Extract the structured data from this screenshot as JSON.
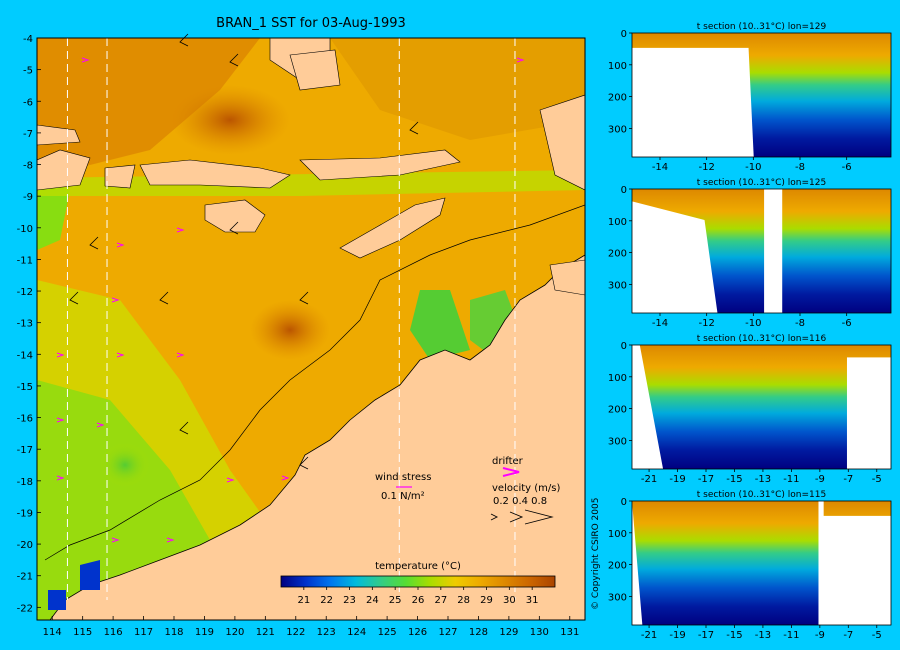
{
  "colors": {
    "background": "#00ccff",
    "land": "#ffcc99",
    "wind_vector": "#000000",
    "drifter": "#ff00ff",
    "section_empty": "#ffffff",
    "colorscale": [
      "#000080",
      "#0033cc",
      "#0077ee",
      "#00bbdd",
      "#33cc88",
      "#55dd33",
      "#aadd00",
      "#eecc00",
      "#eeaa00",
      "#dd8800",
      "#cc6600",
      "#aa4400"
    ]
  },
  "chart_data": [
    {
      "id": "map",
      "type": "heatmap",
      "title": "BRAN_1 SST for 03-Aug-1993",
      "x_ticks": [
        "114",
        "115",
        "116",
        "117",
        "118",
        "119",
        "120",
        "121",
        "122",
        "123",
        "124",
        "125",
        "126",
        "127",
        "128",
        "129",
        "130",
        "131"
      ],
      "y_ticks": [
        "-4",
        "-5",
        "-6",
        "-7",
        "-8",
        "-9",
        "-10",
        "-11",
        "-12",
        "-13",
        "-14",
        "-15",
        "-16",
        "-17",
        "-18",
        "-19",
        "-20",
        "-21",
        "-22"
      ],
      "xlim": [
        113.5,
        131.5
      ],
      "ylim": [
        -22.4,
        -4.0
      ],
      "section_lines_lon": [
        114.5,
        115.8,
        125.4,
        129.2
      ],
      "colorbar": {
        "label": "temperature (°C)",
        "range": [
          20,
          32
        ],
        "ticks": [
          "21",
          "22",
          "23",
          "24",
          "25",
          "26",
          "27",
          "28",
          "29",
          "30",
          "31"
        ]
      },
      "legend": {
        "wind_label": "wind stress",
        "wind_scale": "0.1 N/m²",
        "drifter_label": "drifter",
        "velocity_label": "velocity (m/s)",
        "velocity_scale": "0.2 0.4 0.8"
      }
    },
    {
      "id": "section1",
      "type": "heatmap",
      "title": "t section (10..31°C) lon=129",
      "x_ticks": [
        "-14",
        "-12",
        "-10",
        "-8",
        "-6"
      ],
      "y_ticks": [
        "0",
        "100",
        "200",
        "300"
      ],
      "xlim": [
        -15.2,
        -4.1
      ],
      "ylim": [
        0,
        390
      ]
    },
    {
      "id": "section2",
      "type": "heatmap",
      "title": "t section (10..31°C) lon=125",
      "x_ticks": [
        "-14",
        "-12",
        "-10",
        "-8",
        "-6"
      ],
      "y_ticks": [
        "0",
        "100",
        "200",
        "300"
      ],
      "xlim": [
        -15.2,
        -4.1
      ],
      "ylim": [
        0,
        390
      ]
    },
    {
      "id": "section3",
      "type": "heatmap",
      "title": "t section (10..31°C) lon=116",
      "x_ticks": [
        "-21",
        "-19",
        "-17",
        "-15",
        "-13",
        "-11",
        "-9",
        "-7",
        "-5"
      ],
      "y_ticks": [
        "0",
        "100",
        "200",
        "300"
      ],
      "xlim": [
        -22.2,
        -4.0
      ],
      "ylim": [
        0,
        390
      ]
    },
    {
      "id": "section4",
      "type": "heatmap",
      "title": "t section (10..31°C) lon=115",
      "x_ticks": [
        "-21",
        "-19",
        "-17",
        "-15",
        "-13",
        "-11",
        "-9",
        "-7",
        "-5"
      ],
      "y_ticks": [
        "0",
        "100",
        "200",
        "300"
      ],
      "xlim": [
        -22.2,
        -4.0
      ],
      "ylim": [
        0,
        390
      ]
    }
  ],
  "copyright": "© Copyright CSIRO 2005"
}
